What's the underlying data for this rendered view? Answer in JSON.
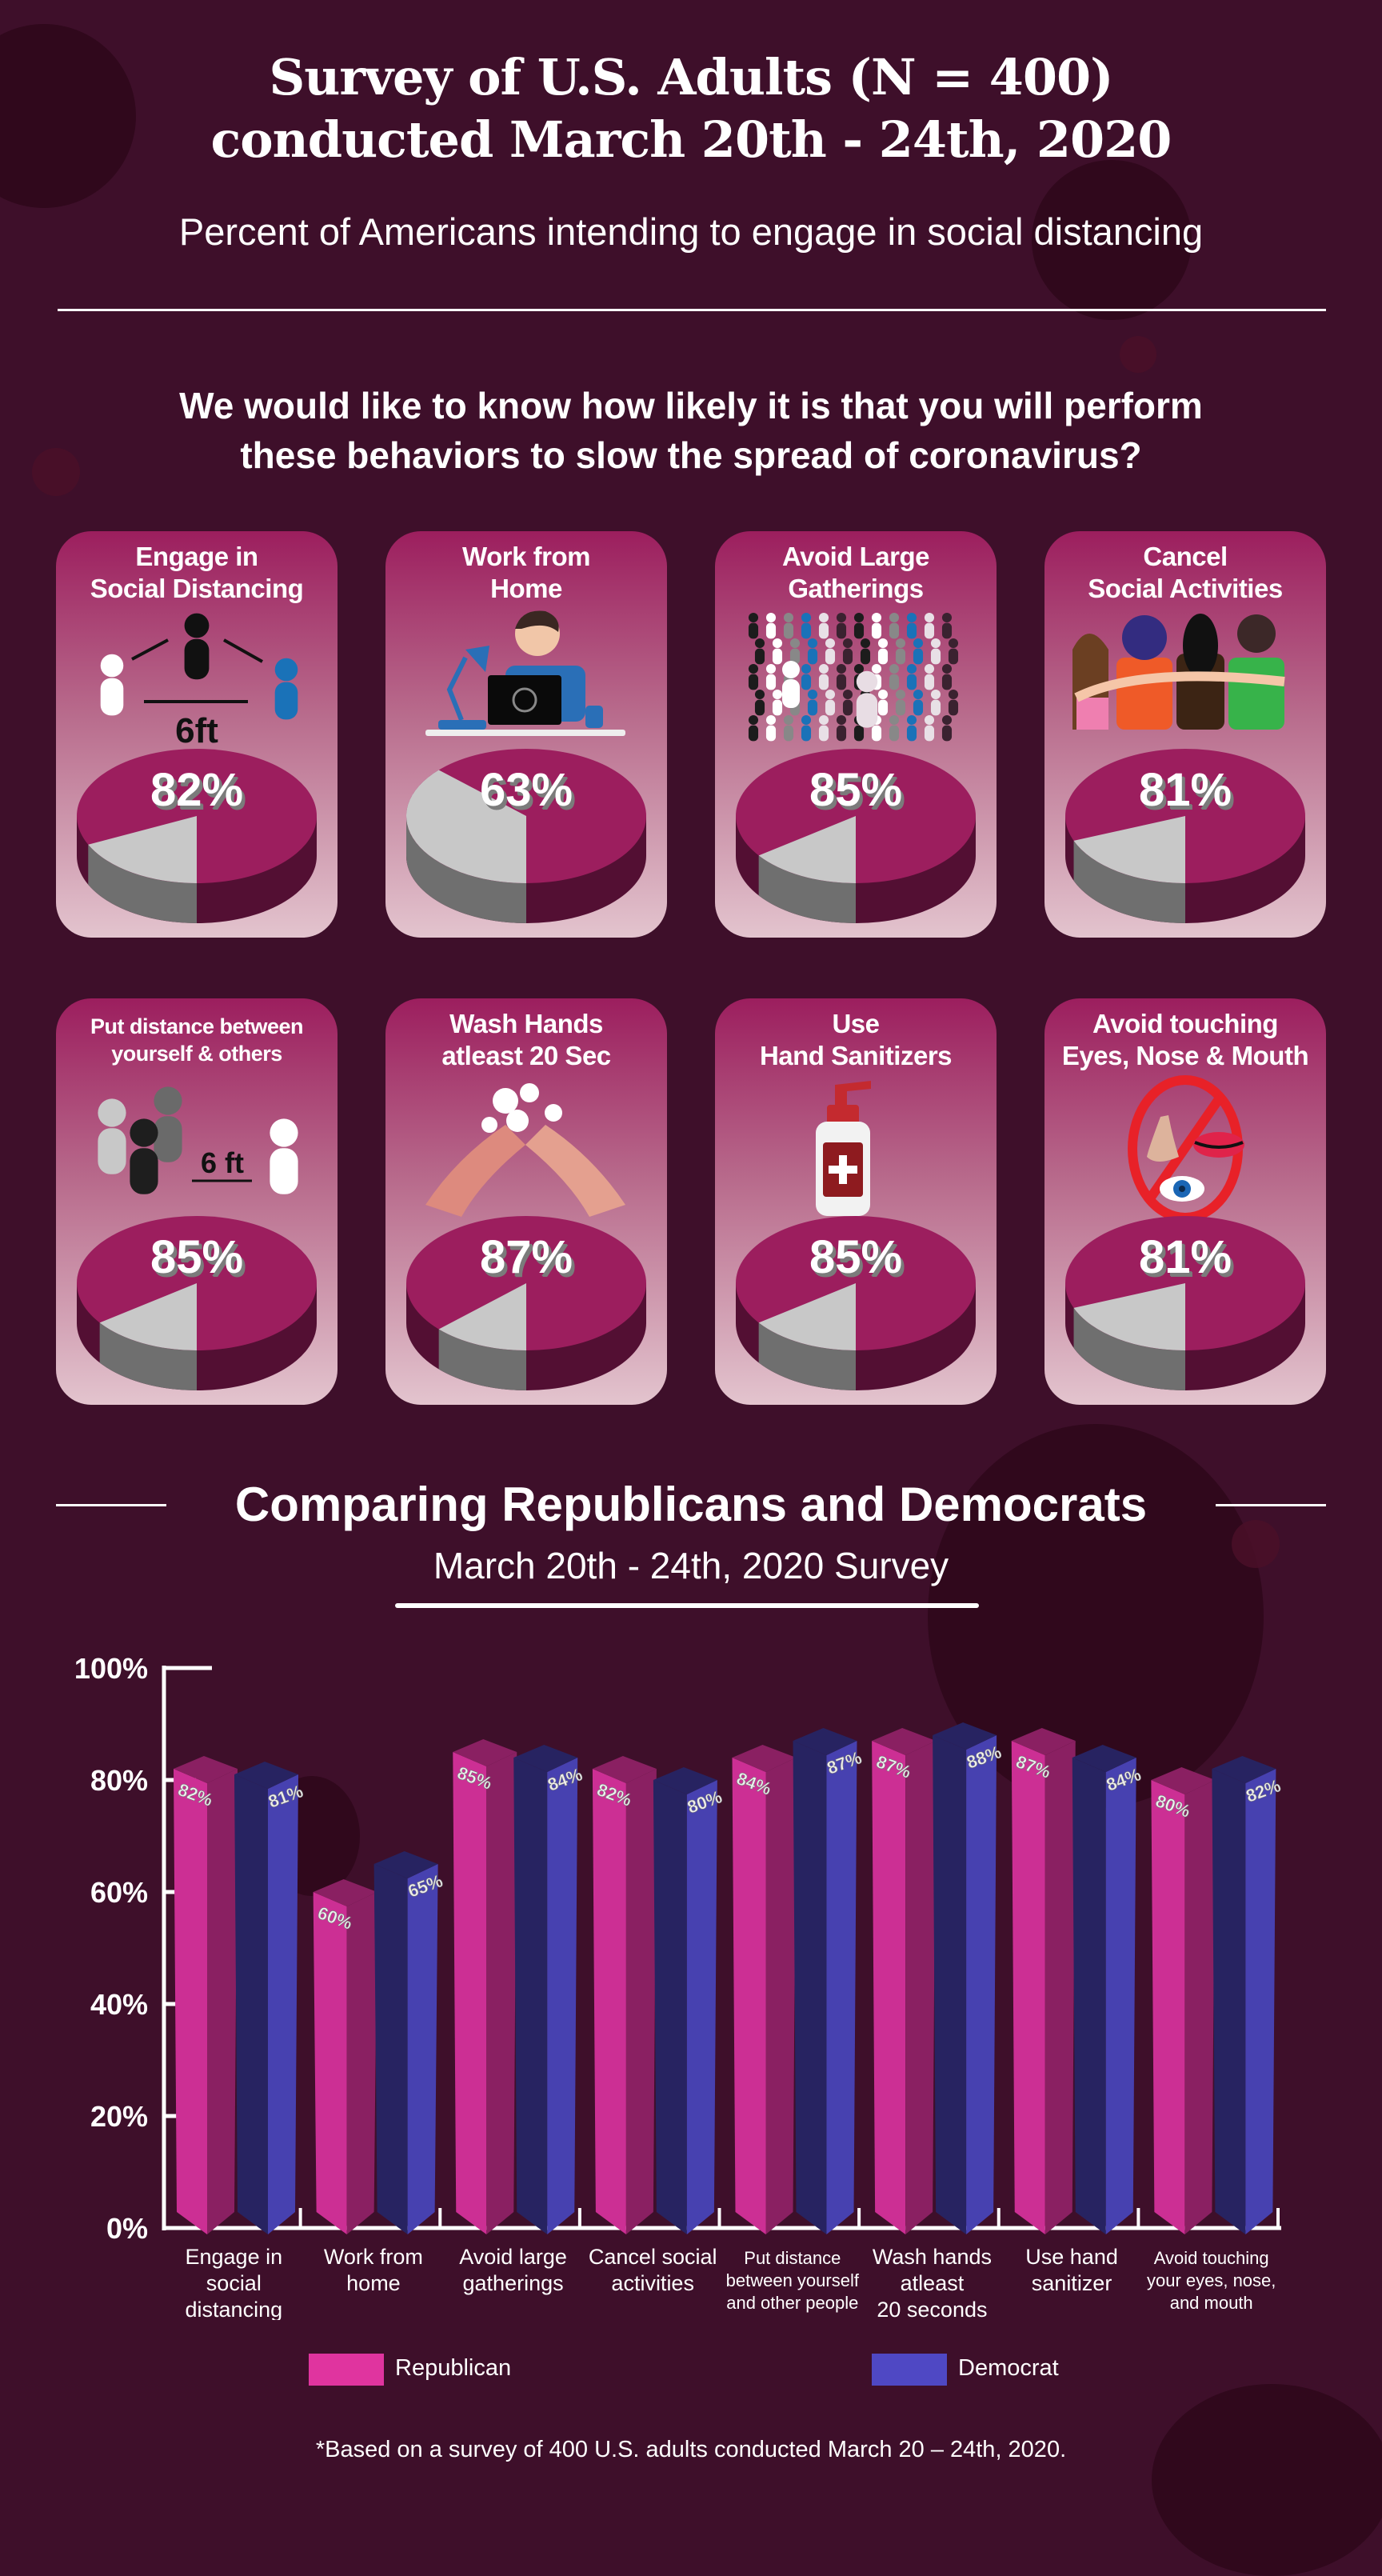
{
  "header": {
    "title_line1": "Survey of U.S. Adults (N = 400)",
    "title_line2": "conducted March 20th - 24th, 2020",
    "subtitle": "Percent of Americans intending to engage in social distancing",
    "question_line1": "We would like to know how likely it is that you will perform",
    "question_line2": "these behaviors to slow the spread of coronavirus?"
  },
  "cards": [
    {
      "title1": "Engage in",
      "title2": "Social Distancing",
      "percent": 82,
      "label": "82%",
      "icon": "social-distancing-people-icon",
      "icon_text": "6ft"
    },
    {
      "title1": "Work from",
      "title2": "Home",
      "percent": 63,
      "label": "63%",
      "icon": "work-from-home-icon"
    },
    {
      "title1": "Avoid Large",
      "title2": "Gatherings",
      "percent": 85,
      "label": "85%",
      "icon": "crowd-icon"
    },
    {
      "title1": "Cancel",
      "title2": "Social Activities",
      "percent": 81,
      "label": "81%",
      "icon": "friends-group-icon"
    },
    {
      "title1": "Put distance between",
      "title2": "yourself & others",
      "percent": 85,
      "label": "85%",
      "icon": "distance-people-icon",
      "icon_text": "6 ft"
    },
    {
      "title1": "Wash Hands",
      "title2": "atleast 20 Sec",
      "percent": 87,
      "label": "87%",
      "icon": "hand-washing-icon"
    },
    {
      "title1": "Use",
      "title2": "Hand Sanitizers",
      "percent": 85,
      "label": "85%",
      "icon": "hand-sanitizer-icon"
    },
    {
      "title1": "Avoid touching",
      "title2": "Eyes, Nose & Mouth",
      "percent": 81,
      "label": "81%",
      "icon": "no-face-touching-icon"
    }
  ],
  "colors": {
    "background": "#3e0f2a",
    "pie_top": "#9c1e5e",
    "pie_side": "#530f33",
    "pie_rest_top": "#c8c8c8",
    "pie_rest_side": "#6f6f6f",
    "republican": "#cc2f94",
    "republican_side": "#8a2062",
    "democrat": "#4741b0",
    "democrat_side": "#272361"
  },
  "chart_section": {
    "title": "Comparing Republicans and Democrats",
    "subtitle": "March 20th - 24th, 2020 Survey",
    "footnote": "*Based on a survey of 400 U.S. adults conducted March 20 – 24th, 2020."
  },
  "chart_data": {
    "type": "bar",
    "title": "Comparing Republicans and Democrats",
    "subtitle": "March 20th - 24th, 2020 Survey",
    "xlabel": "",
    "ylabel": "",
    "ylim": [
      0,
      100
    ],
    "yticks": [
      "0%",
      "20%",
      "40%",
      "60%",
      "80%",
      "100%"
    ],
    "ytick_values": [
      0,
      20,
      40,
      60,
      80,
      100
    ],
    "grid": false,
    "legend_position": "bottom",
    "categories": [
      [
        "Engage in",
        "social",
        "distancing"
      ],
      [
        "Work from",
        "home"
      ],
      [
        "Avoid large",
        "gatherings"
      ],
      [
        "Cancel social",
        "activities"
      ],
      [
        "Put distance",
        "between yourself",
        "and other people"
      ],
      [
        "Wash hands",
        "atleast",
        "20 seconds"
      ],
      [
        "Use hand",
        "sanitizer"
      ],
      [
        "Avoid touching",
        "your eyes, nose,",
        "and mouth"
      ]
    ],
    "series": [
      {
        "name": "Republican",
        "color": "#cc2f94",
        "values": [
          82,
          60,
          85,
          82,
          84,
          87,
          87,
          80
        ]
      },
      {
        "name": "Democrat",
        "color": "#4741b0",
        "values": [
          81,
          65,
          84,
          80,
          87,
          88,
          84,
          82
        ]
      }
    ]
  }
}
